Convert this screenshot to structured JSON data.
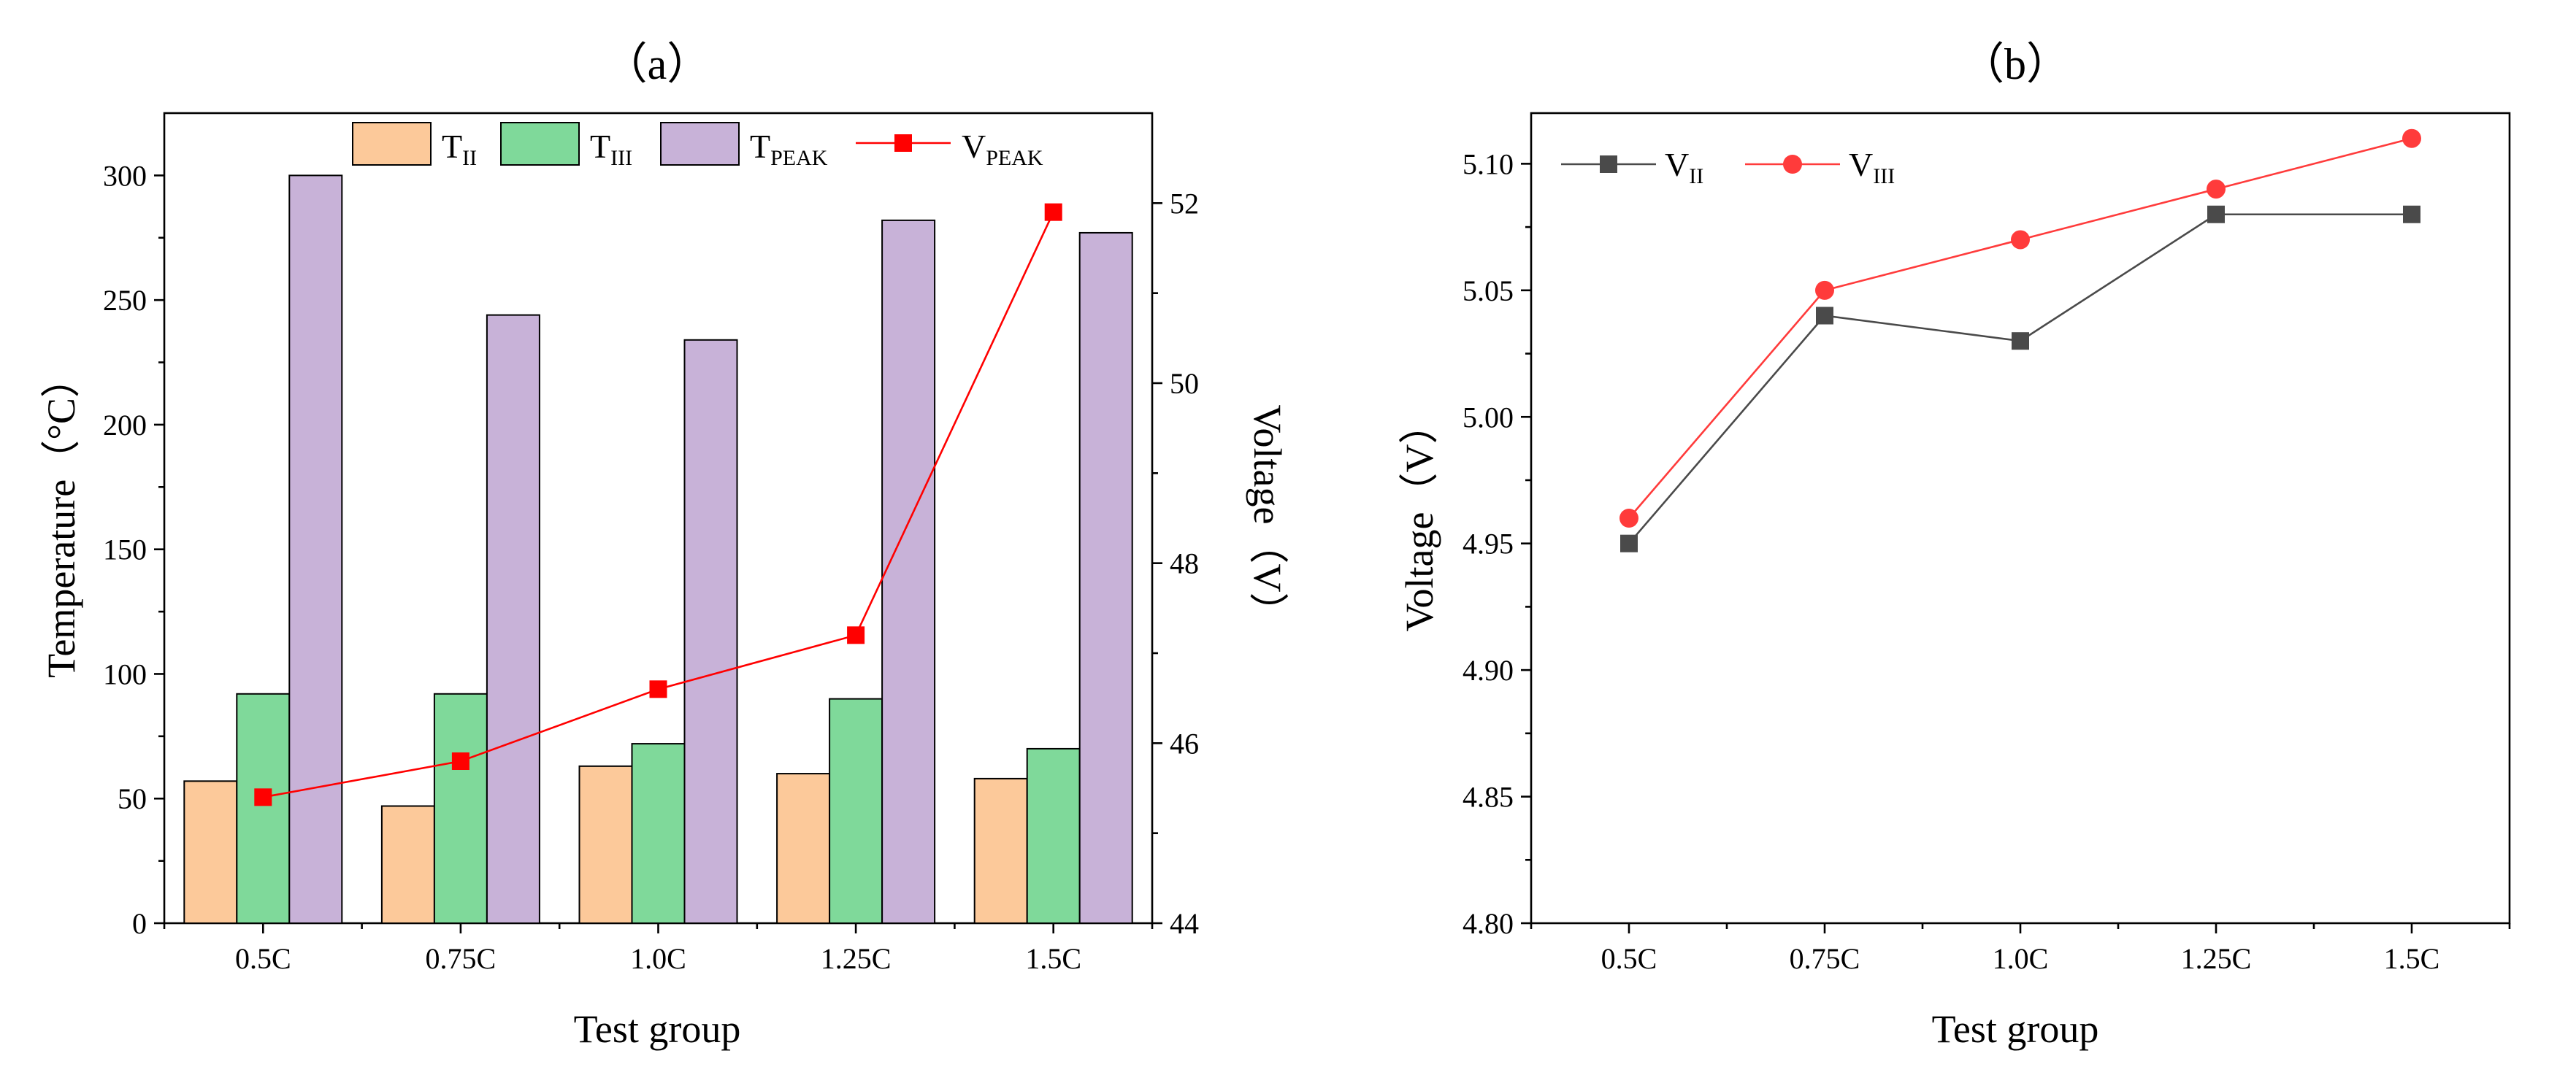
{
  "chart_data": [
    {
      "type": "bar",
      "title": "（a）",
      "xlabel": "Test group",
      "ylabel": "Temperature（°C）",
      "y2label": "Voltage（V）",
      "categories": [
        "0.5C",
        "0.75C",
        "1.0C",
        "1.25C",
        "1.5C"
      ],
      "ylim": [
        0,
        325
      ],
      "yticks": [
        0,
        50,
        100,
        150,
        200,
        250,
        300
      ],
      "y2lim": [
        44,
        53
      ],
      "y2ticks": [
        44,
        46,
        48,
        50,
        52
      ],
      "legend_position": "top",
      "series": [
        {
          "name": "T",
          "sub": "II",
          "color": "#FCC99A",
          "values": [
            57,
            47,
            63,
            60,
            58
          ]
        },
        {
          "name": "T",
          "sub": "III",
          "color": "#7FD99A",
          "values": [
            92,
            92,
            72,
            90,
            70
          ]
        },
        {
          "name": "T",
          "sub": "PEAK",
          "color": "#C8B2D8",
          "values": [
            300,
            244,
            234,
            282,
            277
          ]
        }
      ],
      "line_series": [
        {
          "name": "V",
          "sub": "PEAK",
          "axis": "right",
          "color": "#FF0000",
          "marker": "square",
          "values": [
            45.4,
            45.8,
            46.6,
            47.2,
            51.9
          ]
        }
      ]
    },
    {
      "type": "line",
      "title": "（b）",
      "xlabel": "Test group",
      "ylabel": "Voltage（V）",
      "categories": [
        "0.5C",
        "0.75C",
        "1.0C",
        "1.25C",
        "1.5C"
      ],
      "ylim": [
        4.8,
        5.12
      ],
      "yticks": [
        "4.80",
        "4.85",
        "4.90",
        "4.95",
        "5.00",
        "5.05",
        "5.10"
      ],
      "legend_position": "top-left",
      "series": [
        {
          "name": "V",
          "sub": "II",
          "color": "#4A4A4A",
          "marker": "square",
          "values": [
            4.95,
            5.04,
            5.03,
            5.08,
            5.08
          ]
        },
        {
          "name": "V",
          "sub": "III",
          "color": "#FF3B3B",
          "marker": "circle",
          "values": [
            4.96,
            5.05,
            5.07,
            5.09,
            5.11
          ]
        }
      ]
    }
  ]
}
